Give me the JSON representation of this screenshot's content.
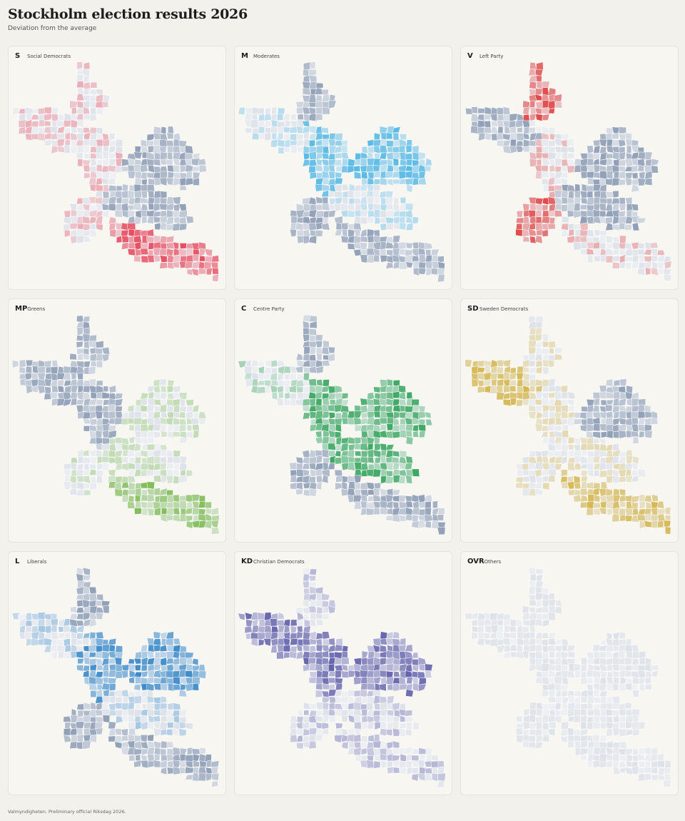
{
  "header": {
    "title": "Stockholm election results 2026",
    "subtitle": "Deviation from the average"
  },
  "panels": [
    {
      "code": "S",
      "name": "Social Democrats",
      "pos": "#e63146",
      "pattern": [
        0,
        0,
        0,
        -1,
        -1,
        0,
        1
      ]
    },
    {
      "code": "M",
      "name": "Moderates",
      "pos": "#3fb1e3",
      "pattern": [
        -1,
        0,
        1,
        1,
        0,
        -1,
        -1
      ]
    },
    {
      "code": "V",
      "name": "Left Party",
      "pos": "#dd2c2c",
      "pattern": [
        1,
        -1,
        0,
        -1,
        -1,
        1,
        0
      ]
    },
    {
      "code": "MP",
      "name": "Greens",
      "pos": "#6fb43f",
      "pattern": [
        -1,
        -1,
        -1,
        0,
        0,
        0,
        1
      ]
    },
    {
      "code": "C",
      "name": "Centre Party",
      "pos": "#1f9c4a",
      "pattern": [
        -1,
        0,
        1,
        1,
        1,
        -1,
        -1
      ]
    },
    {
      "code": "SD",
      "name": "Sweden Democrats",
      "pos": "#d1ad35",
      "pattern": [
        0,
        1,
        0,
        -1,
        0,
        0,
        1
      ]
    },
    {
      "code": "L",
      "name": "Liberals",
      "pos": "#1f79c2",
      "pattern": [
        -1,
        0,
        1,
        1,
        0,
        -1,
        -1
      ]
    },
    {
      "code": "KD",
      "name": "Christian Democrats",
      "pos": "#4c4aa0",
      "pattern": [
        0,
        1,
        1,
        1,
        0,
        0,
        0
      ]
    },
    {
      "code": "OVR",
      "name": "Others",
      "pos": "#c7ccd6",
      "pattern": [
        0,
        0,
        0,
        0,
        0,
        0,
        0
      ]
    }
  ],
  "neg_color": "#5e7597",
  "footer": "Valmyndigheten. Preliminary official Riksdag 2026."
}
